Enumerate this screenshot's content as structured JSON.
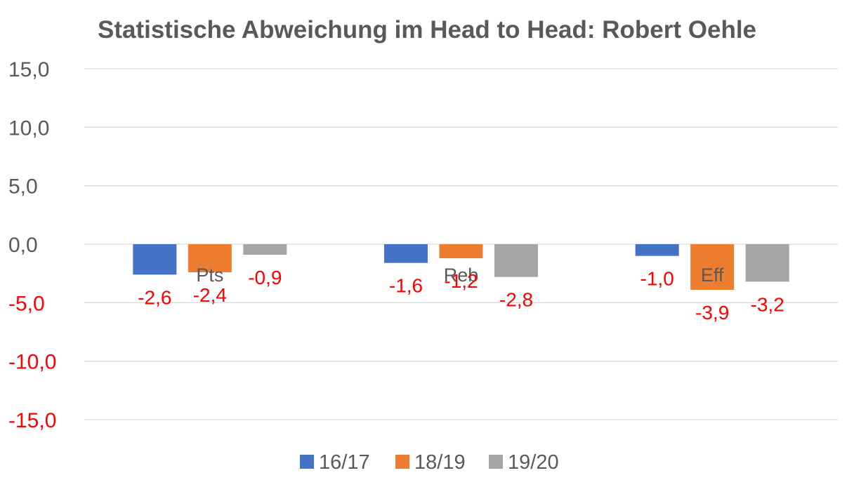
{
  "chart_data": {
    "type": "bar",
    "title": "Statistische Abweichung im Head to Head: Robert Oehle",
    "xlabel": "",
    "ylabel": "",
    "categories": [
      "Pts",
      "Reb",
      "Eff"
    ],
    "series": [
      {
        "name": "16/17",
        "color": "#4472C4",
        "values": [
          -2.6,
          -1.6,
          -1.0
        ],
        "labels": [
          "-2,6",
          "-1,6",
          "-1,0"
        ]
      },
      {
        "name": "18/19",
        "color": "#ED7D31",
        "values": [
          -2.4,
          -1.2,
          -3.9
        ],
        "labels": [
          "-2,4",
          "-1,2",
          "-3,9"
        ]
      },
      {
        "name": "19/20",
        "color": "#A5A5A5",
        "values": [
          -0.9,
          -2.8,
          -3.2
        ],
        "labels": [
          "-0,9",
          "-2,8",
          "-3,2"
        ]
      }
    ],
    "ylim": [
      -15,
      15
    ],
    "yticks": [
      15,
      10,
      5,
      0,
      -5,
      -10,
      -15
    ],
    "ytick_labels": [
      "15,0",
      "10,0",
      "5,0",
      "0,0",
      "-5,0",
      "-10,0",
      "-15,0"
    ],
    "grid": true,
    "legend_position": "bottom",
    "colors": {
      "positive_tick": "#595959",
      "negative_tick": "#FF0000",
      "data_label": "#FF0000",
      "gridline": "#D9D9D9"
    }
  }
}
